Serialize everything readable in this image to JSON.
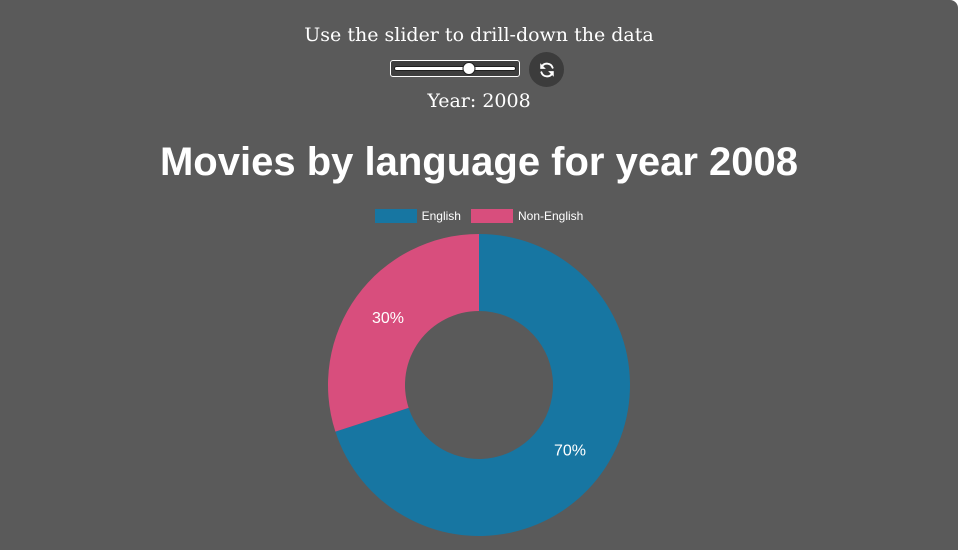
{
  "header": {
    "instruction": "Use the slider to drill-down the data",
    "year_label": "Year: 2008"
  },
  "slider": {
    "fraction": 0.62
  },
  "refresh_icon": "refresh-icon",
  "chart_data": {
    "type": "pie",
    "title": "Movies by language for year 2008",
    "categories": [
      "English",
      "Non-English"
    ],
    "values": [
      70,
      30
    ],
    "labels": [
      "70%",
      "30%"
    ],
    "colors": [
      "#1776a2",
      "#d84e7d"
    ],
    "legend_position": "top"
  }
}
